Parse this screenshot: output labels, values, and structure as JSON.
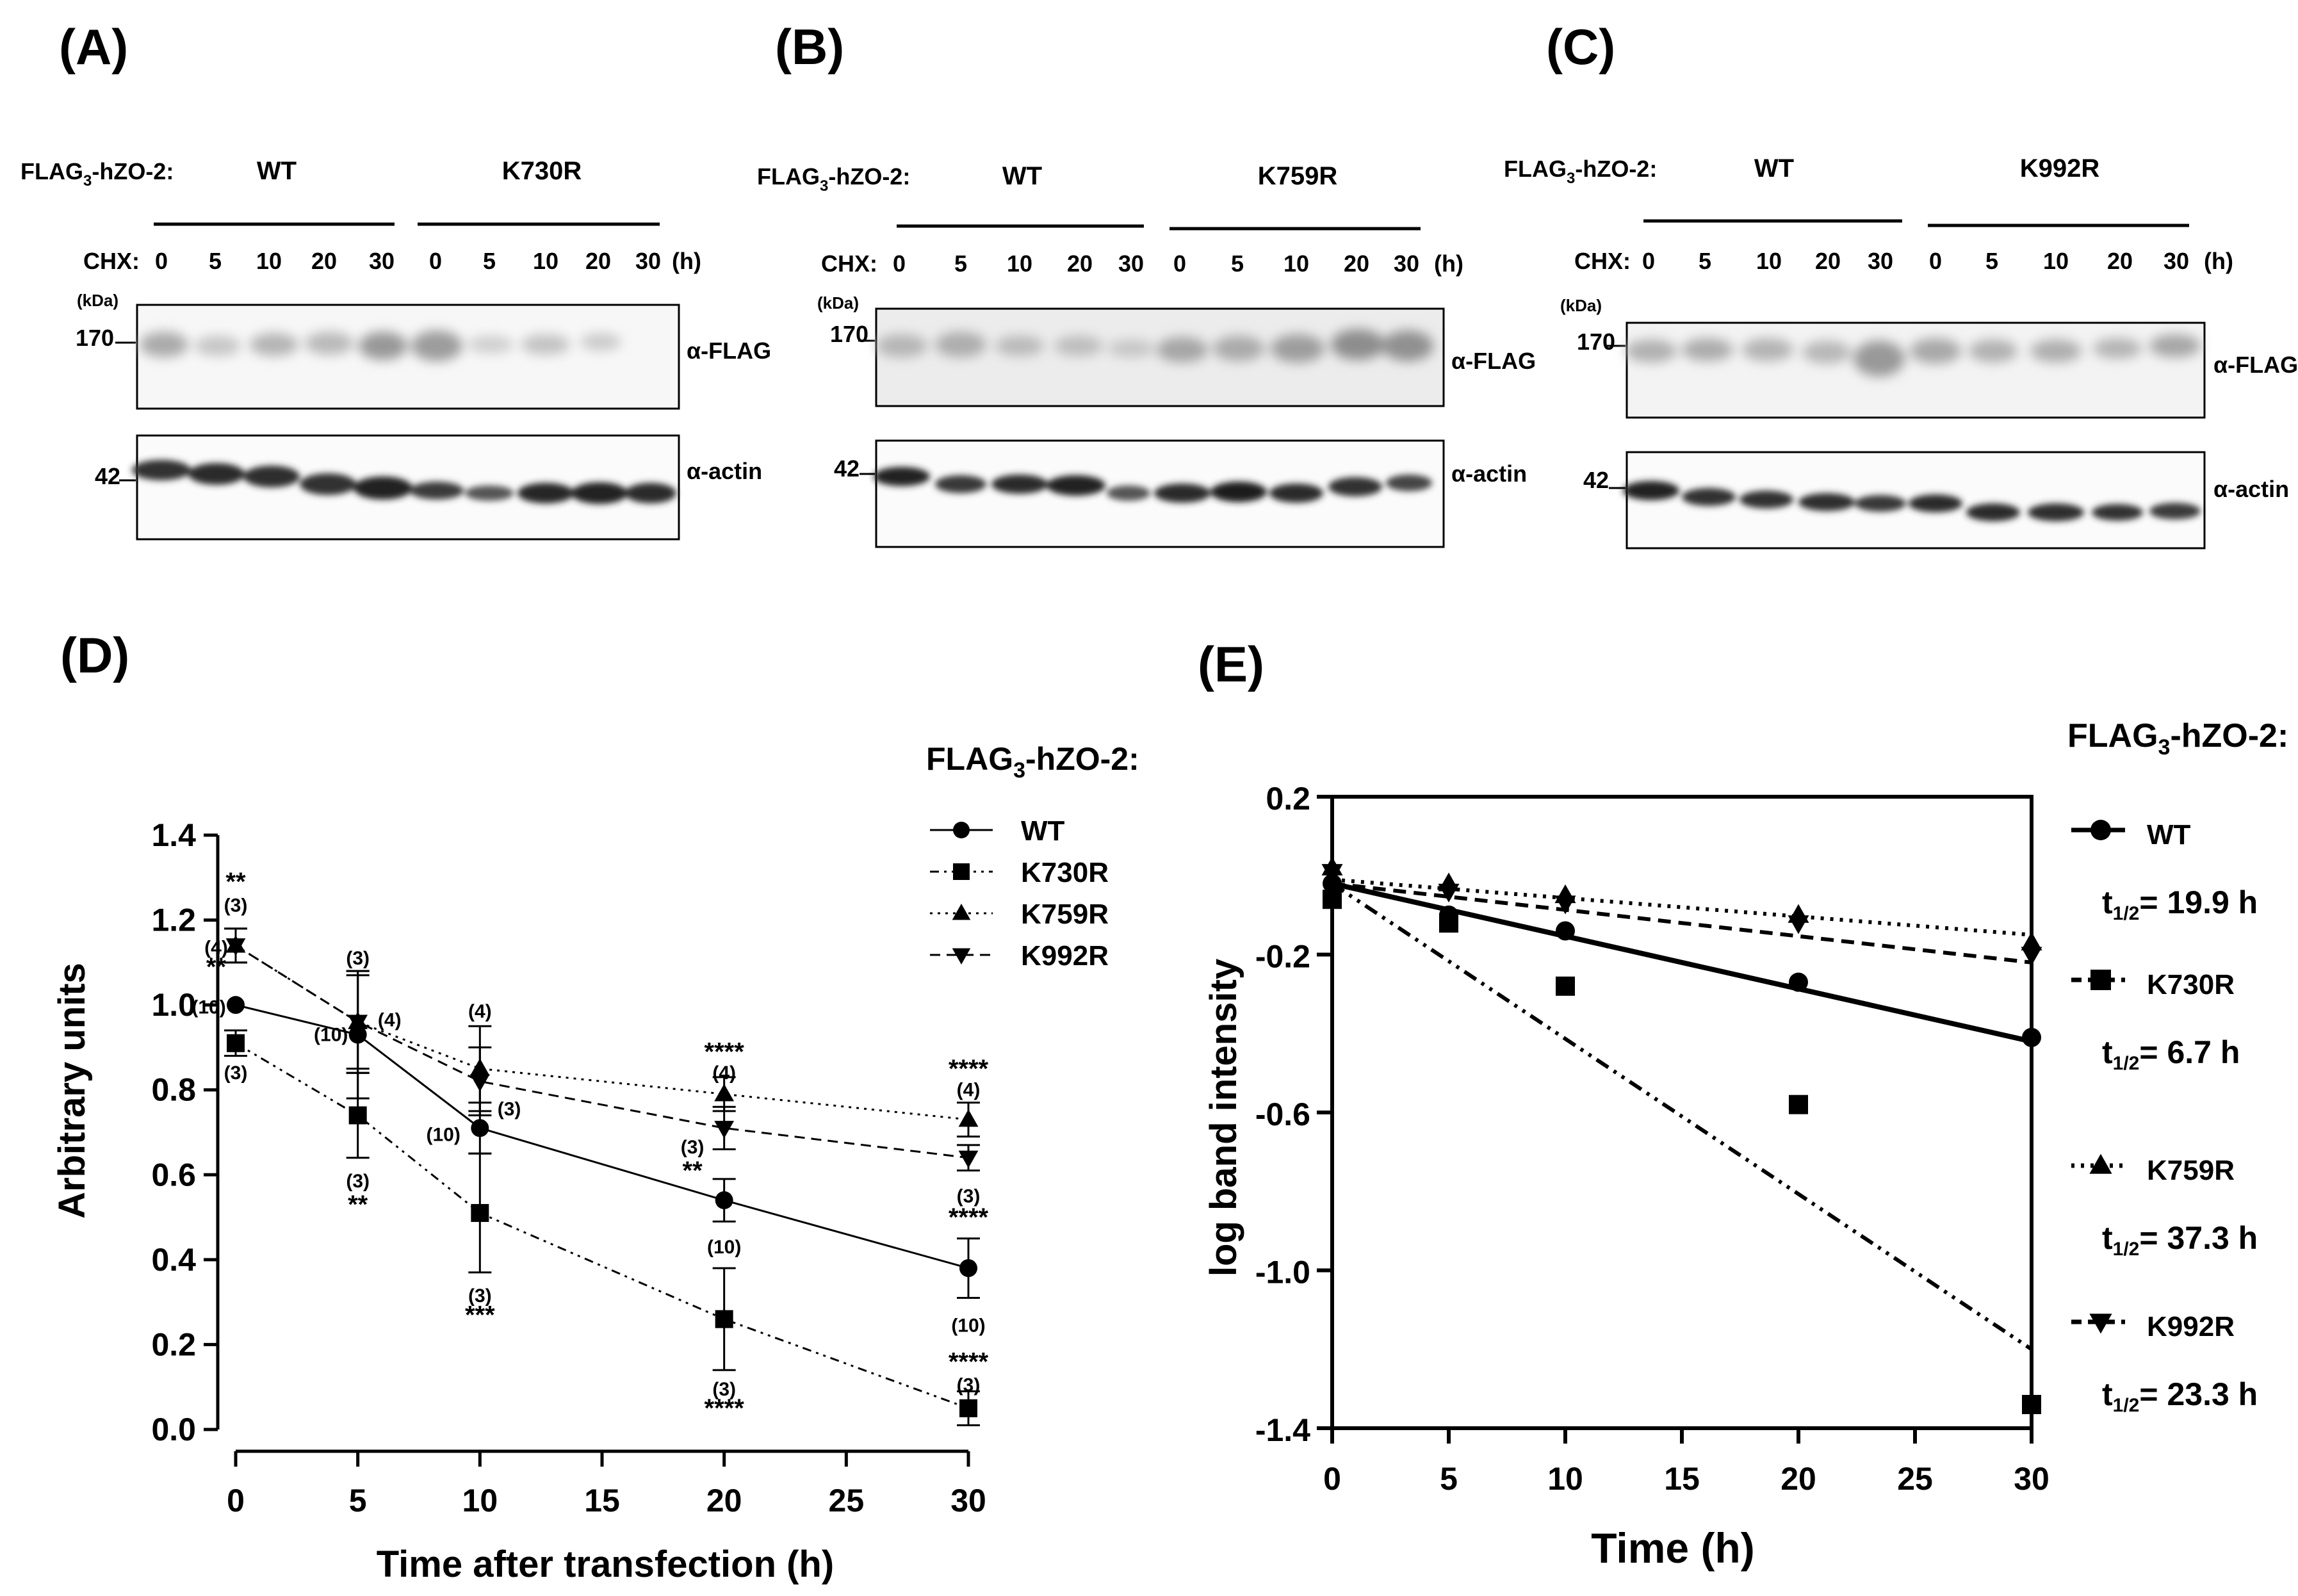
{
  "blots": [
    {
      "panel": "(A)",
      "construct_label": "FLAG",
      "construct_sub": "3",
      "construct_rest": "-hZO-2:",
      "group_wt": "WT",
      "group_mut": "K730R",
      "cond_label": "CHX:",
      "times": [
        "0",
        "5",
        "10",
        "20",
        "30",
        "0",
        "5",
        "10",
        "20",
        "30"
      ],
      "unit": "(h)",
      "kda": "(kDa)",
      "mw_top": "170",
      "mw_bottom": "42",
      "ab_top": "α-FLAG",
      "ab_bottom": "α-actin"
    },
    {
      "panel": "(B)",
      "construct_label": "FLAG",
      "construct_sub": "3",
      "construct_rest": "-hZO-2:",
      "group_wt": "WT",
      "group_mut": "K759R",
      "cond_label": "CHX:",
      "times": [
        "0",
        "5",
        "10",
        "20",
        "30",
        "0",
        "5",
        "10",
        "20",
        "30"
      ],
      "unit": "(h)",
      "kda": "(kDa)",
      "mw_top": "170",
      "mw_bottom": "42",
      "ab_top": "α-FLAG",
      "ab_bottom": "α-actin"
    },
    {
      "panel": "(C)",
      "construct_label": "FLAG",
      "construct_sub": "3",
      "construct_rest": "-hZO-2:",
      "group_wt": "WT",
      "group_mut": "K992R",
      "cond_label": "CHX:",
      "times": [
        "0",
        "5",
        "10",
        "20",
        "30",
        "0",
        "5",
        "10",
        "20",
        "30"
      ],
      "unit": "(h)",
      "kda": "(kDa)",
      "mw_top": "170",
      "mw_bottom": "42",
      "ab_top": "α-FLAG",
      "ab_bottom": "α-actin"
    }
  ],
  "chart_data": [
    {
      "panel": "(D)",
      "type": "line",
      "xlabel": "Time after transfection (h)",
      "ylabel": "Arbitrary units",
      "xlim": [
        0,
        30
      ],
      "ylim": [
        0,
        1.4
      ],
      "xticks": [
        "0",
        "5",
        "10",
        "15",
        "20",
        "25",
        "30"
      ],
      "yticks": [
        "0.0",
        "0.2",
        "0.4",
        "0.6",
        "0.8",
        "1.0",
        "1.2",
        "1.4"
      ],
      "legend_title": "FLAG",
      "legend_title_sub": "3",
      "legend_title_rest": "-hZO-2:",
      "x": [
        0,
        5,
        10,
        20,
        30
      ],
      "series": [
        {
          "name": "WT",
          "marker": "circle",
          "dash": "",
          "values": [
            1.0,
            0.93,
            0.71,
            0.54,
            0.38
          ],
          "err": [
            0,
            0.15,
            0.06,
            0.05,
            0.07
          ]
        },
        {
          "name": "K730R",
          "marker": "square",
          "dash": "14 8 4 8 4 8",
          "values": [
            0.91,
            0.74,
            0.51,
            0.26,
            0.05
          ],
          "err": [
            0.03,
            0.1,
            0.14,
            0.12,
            0.04
          ]
        },
        {
          "name": "K759R",
          "marker": "triangle-up",
          "dash": "4 8",
          "values": [
            1.14,
            0.96,
            0.85,
            0.79,
            0.73
          ],
          "err": [
            0.04,
            0.11,
            0.1,
            0.04,
            0.04
          ]
        },
        {
          "name": "K992R",
          "marker": "triangle-down",
          "dash": "16 10",
          "values": [
            1.14,
            0.96,
            0.82,
            0.71,
            0.64
          ],
          "err": [
            0.04,
            0.12,
            0.08,
            0.05,
            0.03
          ]
        }
      ],
      "annotations": [
        {
          "text": "**",
          "x": 0,
          "y": 1.285
        },
        {
          "text": "(3)",
          "x": 0,
          "y": 1.235
        },
        {
          "text": "(4)",
          "x": -0.8,
          "y": 1.135
        },
        {
          "text": "**",
          "x": -0.8,
          "y": 1.085
        },
        {
          "text": "(10)",
          "x": -1.1,
          "y": 0.995
        },
        {
          "text": "(3)",
          "x": 0,
          "y": 0.84
        },
        {
          "text": "(3)",
          "x": 5,
          "y": 1.11
        },
        {
          "text": "(10)",
          "x": 3.9,
          "y": 0.93
        },
        {
          "text": "(4)",
          "x": 6.3,
          "y": 0.965
        },
        {
          "text": "(3)",
          "x": 5,
          "y": 0.585
        },
        {
          "text": "**",
          "x": 5,
          "y": 0.525
        },
        {
          "text": "(4)",
          "x": 10,
          "y": 0.985
        },
        {
          "text": "(3)",
          "x": 11.2,
          "y": 0.755
        },
        {
          "text": "(10)",
          "x": 8.5,
          "y": 0.695
        },
        {
          "text": "(3)",
          "x": 10,
          "y": 0.315
        },
        {
          "text": "***",
          "x": 10,
          "y": 0.265
        },
        {
          "text": "****",
          "x": 20,
          "y": 0.885
        },
        {
          "text": "(4)",
          "x": 20,
          "y": 0.84
        },
        {
          "text": "(3)",
          "x": 18.7,
          "y": 0.665
        },
        {
          "text": "**",
          "x": 18.7,
          "y": 0.605
        },
        {
          "text": "(10)",
          "x": 20,
          "y": 0.43
        },
        {
          "text": "(3)",
          "x": 20,
          "y": 0.095
        },
        {
          "text": "****",
          "x": 20,
          "y": 0.045
        },
        {
          "text": "****",
          "x": 30,
          "y": 0.845
        },
        {
          "text": "(4)",
          "x": 30,
          "y": 0.8
        },
        {
          "text": "(3)",
          "x": 30,
          "y": 0.55
        },
        {
          "text": "****",
          "x": 30,
          "y": 0.495
        },
        {
          "text": "(10)",
          "x": 30,
          "y": 0.245
        },
        {
          "text": "****",
          "x": 30,
          "y": 0.155
        },
        {
          "text": "(3)",
          "x": 30,
          "y": 0.105
        }
      ]
    },
    {
      "panel": "(E)",
      "type": "scatter",
      "xlabel": "Time (h)",
      "ylabel": "log band intensity",
      "xlim": [
        0,
        30
      ],
      "ylim": [
        -1.4,
        0.2
      ],
      "xticks": [
        "0",
        "5",
        "10",
        "15",
        "20",
        "25",
        "30"
      ],
      "yticks": [
        "0.2",
        "-0.2",
        "-0.6",
        "-1.0",
        "-1.4"
      ],
      "legend_title": "FLAG",
      "legend_title_sub": "3",
      "legend_title_rest": "-hZO-2:",
      "x": [
        0,
        5,
        10,
        20,
        30
      ],
      "series": [
        {
          "name": "WT",
          "marker": "circle",
          "dash": "",
          "values": [
            -0.02,
            -0.1,
            -0.14,
            -0.27,
            -0.41
          ],
          "fit": [
            -0.02,
            -0.42
          ],
          "half_life_label": "t",
          "half_life_sub": "1/2",
          "half_life_value": "= 19.9 h"
        },
        {
          "name": "K730R",
          "marker": "square",
          "dash": "22 10 5 10 5 10",
          "values": [
            -0.06,
            -0.12,
            -0.28,
            -0.58,
            -1.34
          ],
          "fit": [
            -0.02,
            -1.2
          ],
          "half_life_label": "t",
          "half_life_sub": "1/2",
          "half_life_value": "= 6.7 h"
        },
        {
          "name": "K759R",
          "marker": "triangle-up",
          "dash": "5 10",
          "values": [
            0.02,
            -0.02,
            -0.05,
            -0.1,
            -0.17
          ],
          "fit": [
            -0.01,
            -0.15
          ],
          "half_life_label": "t",
          "half_life_sub": "1/2",
          "half_life_value": "= 37.3 h"
        },
        {
          "name": "K992R",
          "marker": "triangle-down",
          "dash": "20 12",
          "values": [
            0.01,
            -0.04,
            -0.07,
            -0.12,
            -0.2
          ],
          "fit": [
            -0.02,
            -0.22
          ],
          "half_life_label": "t",
          "half_life_sub": "1/2",
          "half_life_value": "= 23.3 h"
        }
      ]
    }
  ]
}
